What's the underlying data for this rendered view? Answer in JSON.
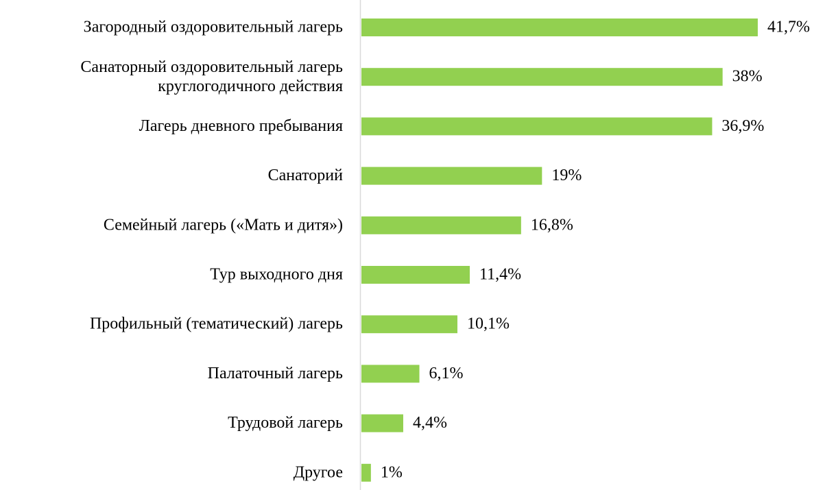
{
  "chart_data": {
    "type": "bar",
    "orientation": "horizontal",
    "categories": [
      "Загородный оздоровительный лагерь",
      "Санаторный оздоровительный лагерь\nкруглогодичного действия",
      "Лагерь дневного пребывания",
      "Санаторий",
      "Семейный лагерь («Мать и дитя»)",
      "Тур выходного дня",
      "Профильный (тематический) лагерь",
      "Палаточный лагерь",
      "Трудовой лагерь",
      "Другое"
    ],
    "values": [
      41.7,
      38,
      36.9,
      19,
      16.8,
      11.4,
      10.1,
      6.1,
      4.4,
      1
    ],
    "value_labels": [
      "41,7%",
      "38%",
      "36,9%",
      "19%",
      "16,8%",
      "11,4%",
      "10,1%",
      "6,1%",
      "4,4%",
      "1%"
    ],
    "color": "#92d050",
    "xlim": [
      0,
      45
    ]
  }
}
